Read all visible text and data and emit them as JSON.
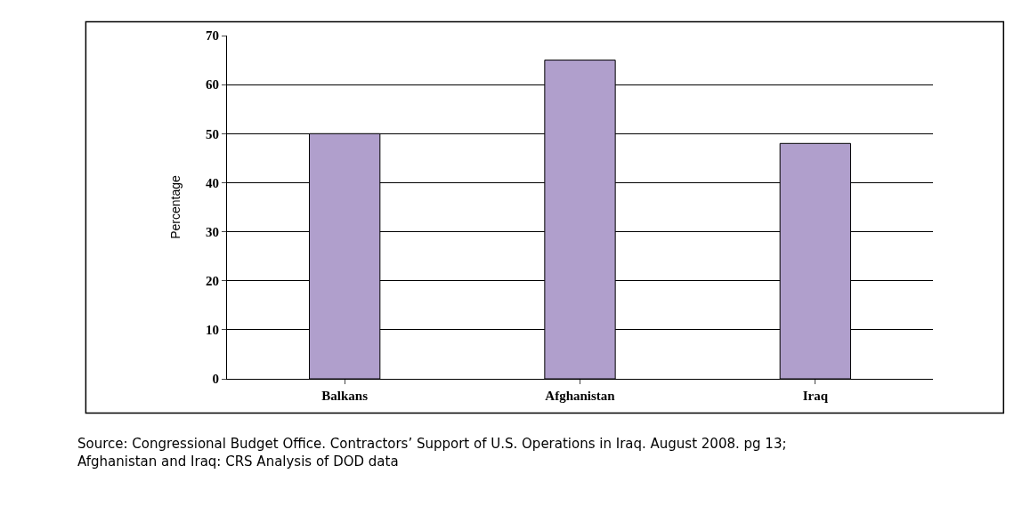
{
  "chart_data": {
    "type": "bar",
    "ylabel": "Percentage",
    "categories": [
      "Balkans",
      "Afghanistan",
      "Iraq"
    ],
    "values": [
      50,
      65,
      48
    ],
    "color": "#b09fcc",
    "ylim": [
      0,
      70
    ],
    "yticks": [
      0,
      10,
      20,
      30,
      40,
      50,
      60,
      70
    ],
    "grid": "y",
    "annotations": [
      "Source: Congressional Budget Office. Contractors’ Support of U.S. Operations in Iraq. August 2008. pg 13;\nAfghanistan and Iraq: CRS Analysis of DOD data"
    ]
  }
}
